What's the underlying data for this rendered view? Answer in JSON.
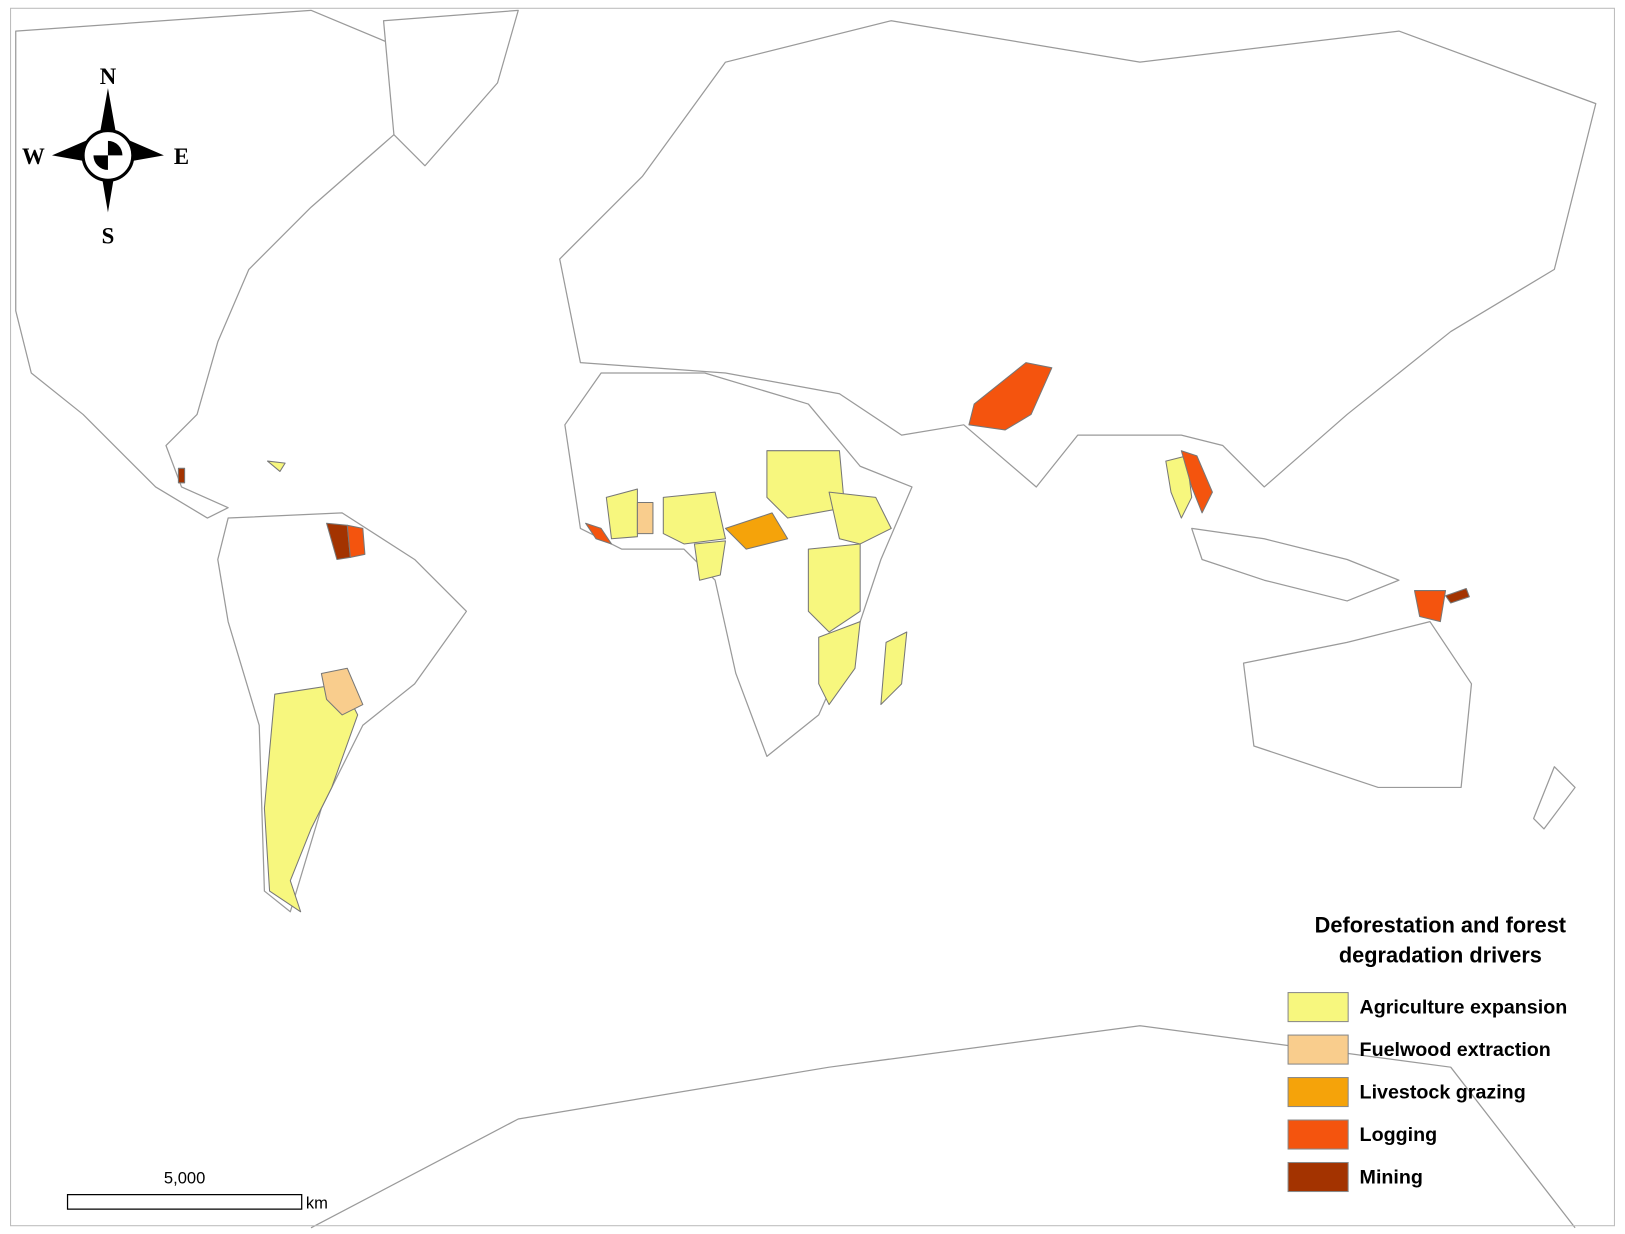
{
  "compass": {
    "north": "N",
    "south": "S",
    "east": "E",
    "west": "W"
  },
  "legend": {
    "title": [
      "Deforestation and forest",
      "degradation drivers"
    ],
    "items": [
      {
        "label": "Agriculture expansion",
        "color": "#f7f77e"
      },
      {
        "label": "Fuelwood extraction",
        "color": "#f9cd8d"
      },
      {
        "label": "Livestock grazing",
        "color": "#f5a30a"
      },
      {
        "label": "Logging",
        "color": "#f4540e"
      },
      {
        "label": "Mining",
        "color": "#a33300"
      }
    ]
  },
  "scale_bar": {
    "label": "5,000",
    "unit": "km"
  }
}
